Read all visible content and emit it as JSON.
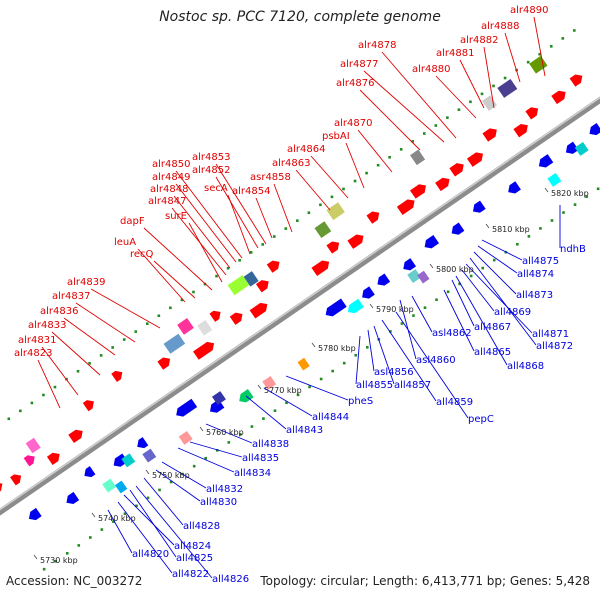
{
  "title": "Nostoc sp. PCC 7120, complete genome",
  "footer": {
    "accession": "Accession: NC_003272",
    "summary": "Topology: circular; Length: 6,413,771 bp; Genes: 5,428"
  },
  "colors": {
    "forward_label": "#e00000",
    "reverse_label": "#0000dd",
    "forward_gene": "#ff0000",
    "reverse_gene": "#0000ee",
    "backbone": "#888888",
    "tick": "#228b22"
  },
  "ticks": [
    {
      "label": "5730 kbp"
    },
    {
      "label": "5740 kbp"
    },
    {
      "label": "5750 kbp"
    },
    {
      "label": "5760 kbp"
    },
    {
      "label": "5770 kbp"
    },
    {
      "label": "5780 kbp"
    },
    {
      "label": "5790 kbp"
    },
    {
      "label": "5800 kbp"
    },
    {
      "label": "5810 kbp"
    },
    {
      "label": "5820 kbp"
    }
  ],
  "forward_labels": [
    "alr4823",
    "alr4831",
    "alr4833",
    "alr4836",
    "alr4837",
    "alr4839",
    "leuA",
    "recQ",
    "dapF",
    "surE",
    "alr4847",
    "alr4848",
    "alr4849",
    "alr4850",
    "secA",
    "alr4852",
    "alr4853",
    "alr4854",
    "asr4858",
    "alr4863",
    "alr4864",
    "psbAI",
    "alr4870",
    "alr4876",
    "alr4877",
    "alr4878",
    "alr4880",
    "alr4881",
    "alr4882",
    "alr4888",
    "alr4890"
  ],
  "reverse_labels": [
    "all4820",
    "all4822",
    "all4824",
    "all4825",
    "all4826",
    "all4828",
    "all4830",
    "all4832",
    "all4834",
    "all4835",
    "all4838",
    "all4843",
    "all4844",
    "pheS",
    "all4855",
    "asl4856",
    "all4857",
    "all4859",
    "pepC",
    "asl4860",
    "asl4862",
    "all4865",
    "all4867",
    "all4868",
    "all4869",
    "all4871",
    "all4872",
    "all4873",
    "all4874",
    "all4875",
    "ndhB"
  ]
}
